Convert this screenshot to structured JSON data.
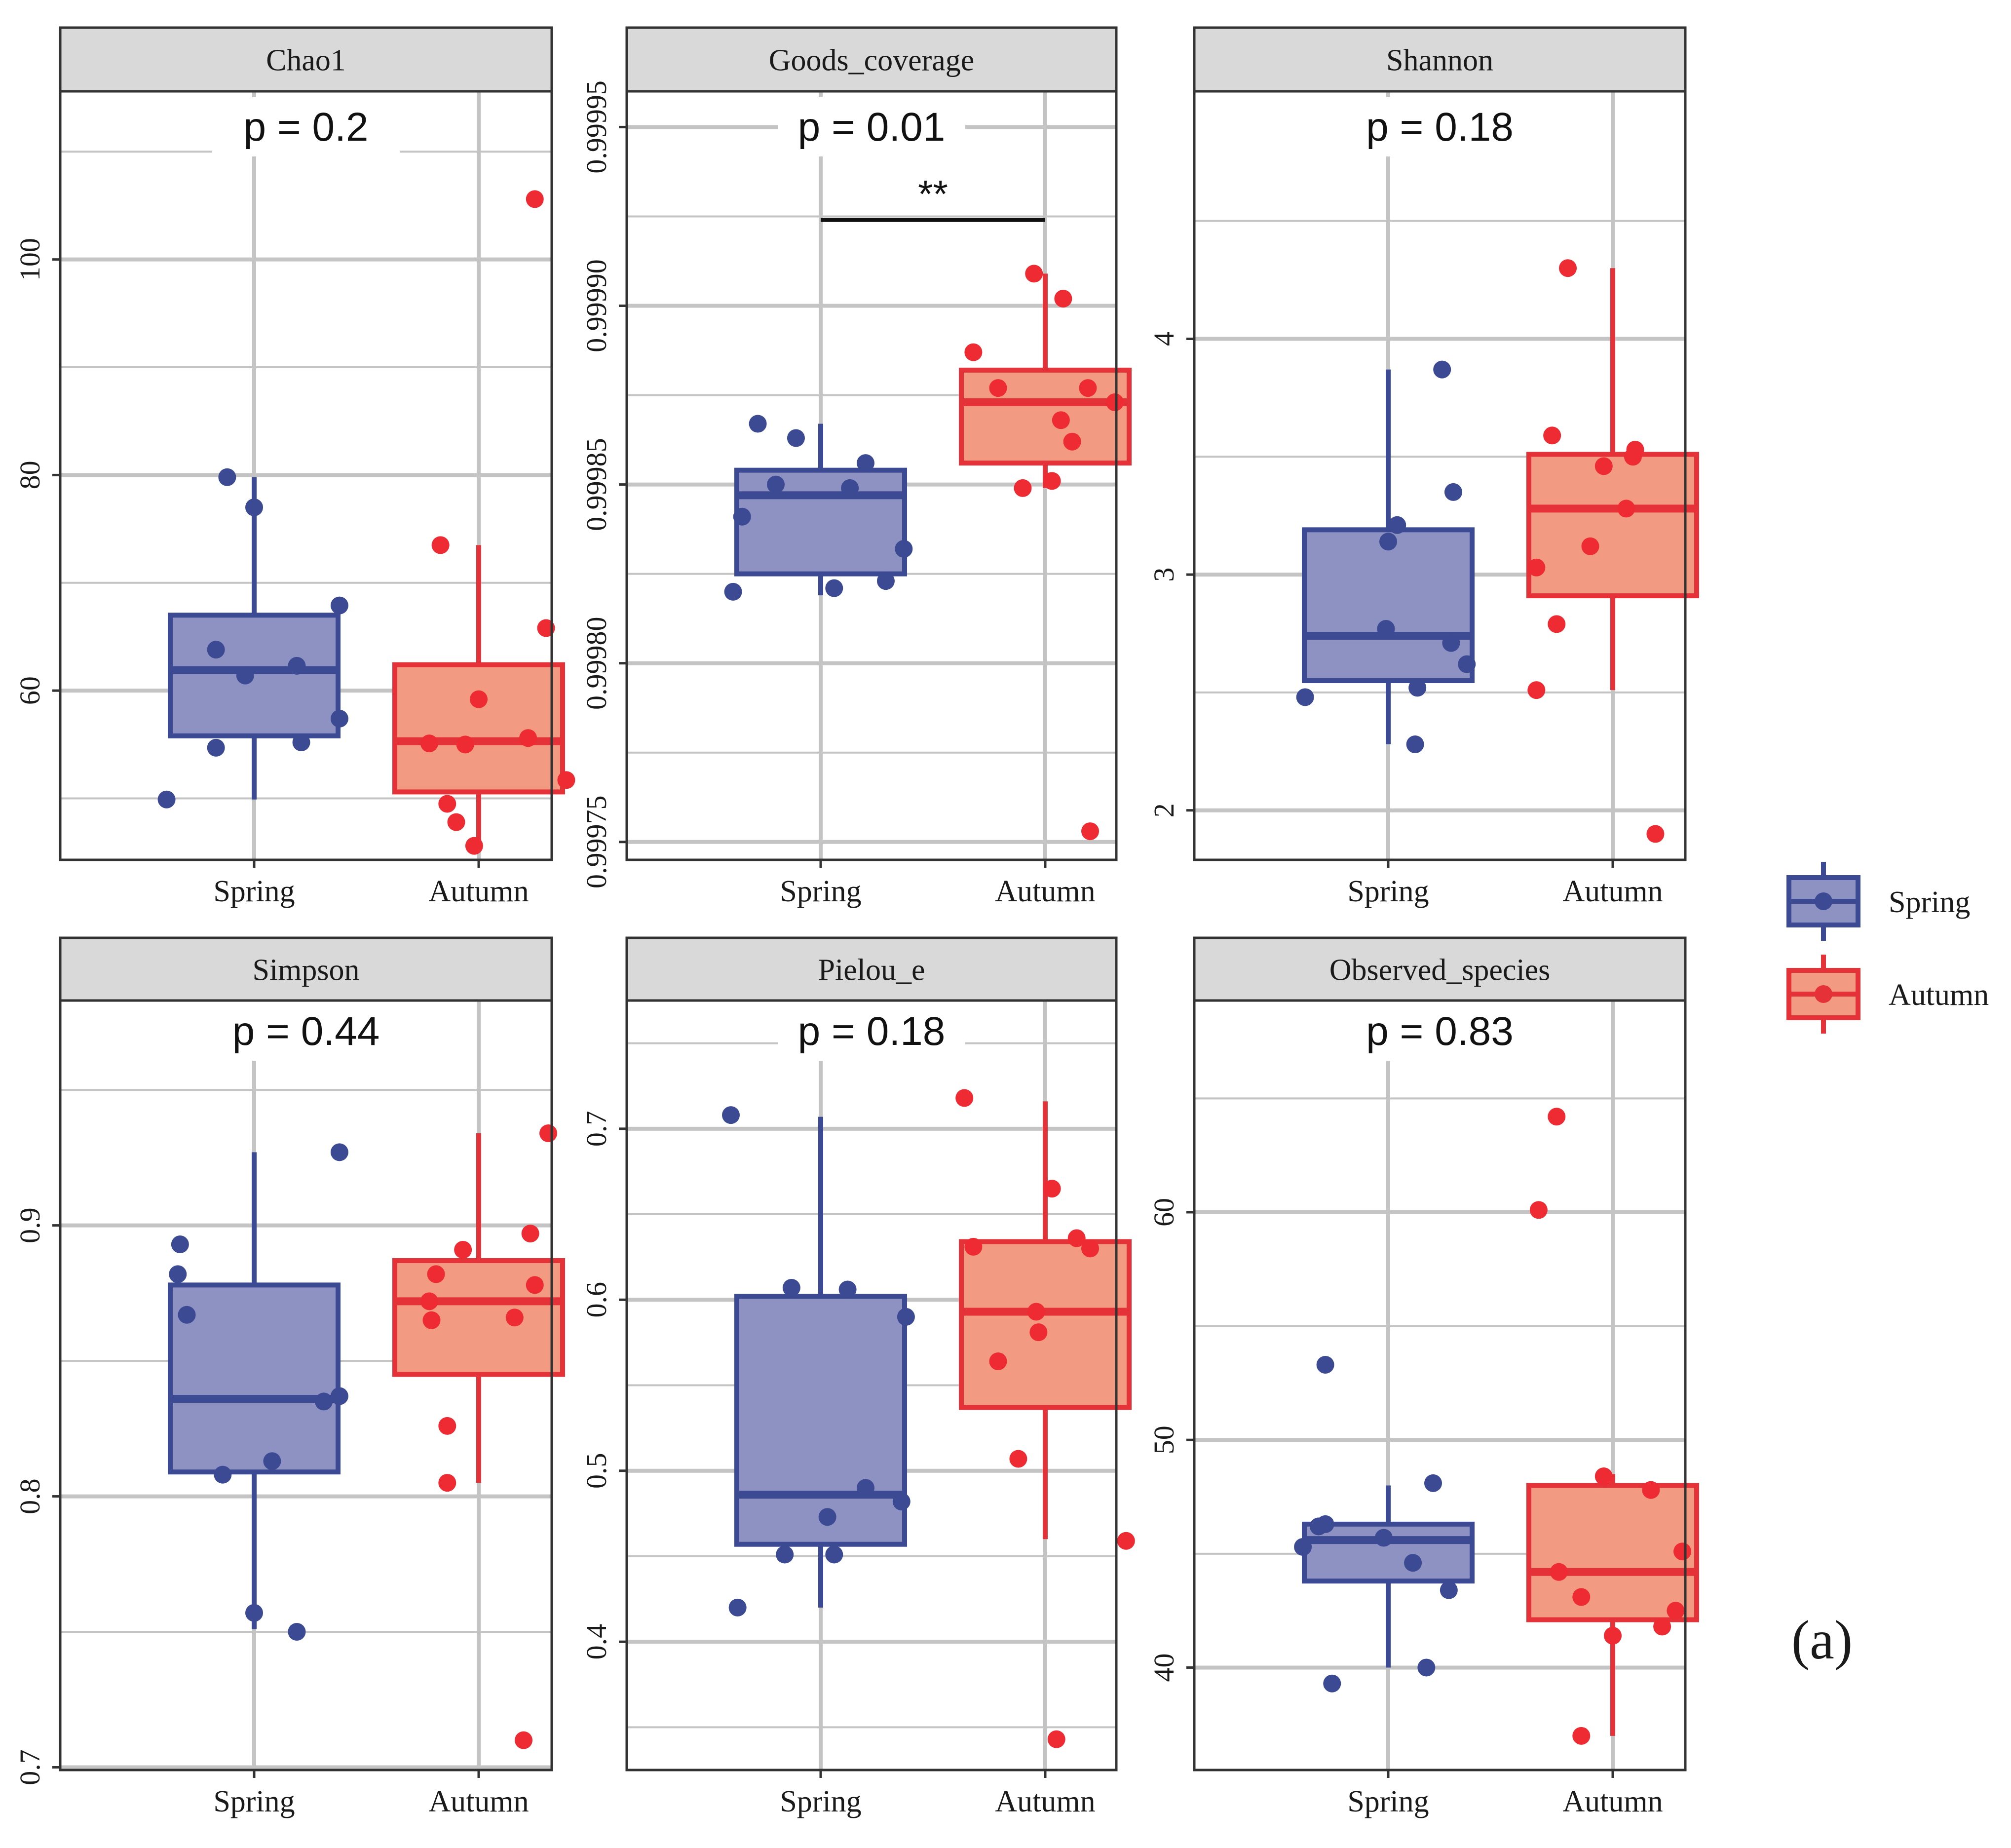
{
  "figure": {
    "panel_tag": "(a)",
    "colors": {
      "spring_line": "#3b4a92",
      "spring_fill": "#8e92c2",
      "spring_point": "#3b4a92",
      "autumn_line": "#e53238",
      "autumn_fill": "#f39a82",
      "autumn_point": "#ee2a32",
      "grid": "#c4c4c4",
      "strip_bg": "#d9d9d9",
      "border": "#333333"
    }
  },
  "legend": {
    "items": [
      {
        "label": "Spring",
        "group": "spring"
      },
      {
        "label": "Autumn",
        "group": "autumn"
      }
    ]
  },
  "chart_data": [
    {
      "type": "box",
      "title": "Chao1",
      "categories": [
        "Spring",
        "Autumn"
      ],
      "ylim": [
        44.3,
        115.6
      ],
      "major_ticks": [
        60,
        80,
        100
      ],
      "minor_ticks": [
        50,
        70,
        90,
        110
      ],
      "tick_labels": [
        "60",
        "80",
        "100"
      ],
      "p_label": "p = 0.2",
      "significance": null,
      "boxes": [
        {
          "group": "Spring",
          "q1": 55.8,
          "median": 61.9,
          "q3": 67.0,
          "whisker_low": 49.9,
          "whisker_high": 79.8
        },
        {
          "group": "Autumn",
          "q1": 50.6,
          "median": 55.3,
          "q3": 62.4,
          "whisker_low": 45.6,
          "whisker_high": 73.5
        }
      ],
      "points": [
        {
          "group": "Spring",
          "x": 0.61,
          "y": 49.9
        },
        {
          "group": "Spring",
          "x": 0.83,
          "y": 54.7
        },
        {
          "group": "Spring",
          "x": 0.83,
          "y": 63.8
        },
        {
          "group": "Spring",
          "x": 0.88,
          "y": 79.8
        },
        {
          "group": "Spring",
          "x": 0.96,
          "y": 61.4
        },
        {
          "group": "Spring",
          "x": 1.0,
          "y": 77.0
        },
        {
          "group": "Spring",
          "x": 1.19,
          "y": 62.3
        },
        {
          "group": "Spring",
          "x": 1.21,
          "y": 55.2
        },
        {
          "group": "Spring",
          "x": 1.38,
          "y": 57.4
        },
        {
          "group": "Spring",
          "x": 1.38,
          "y": 67.9
        },
        {
          "group": "Autumn",
          "x": 1.78,
          "y": 55.1
        },
        {
          "group": "Autumn",
          "x": 1.83,
          "y": 73.5
        },
        {
          "group": "Autumn",
          "x": 1.86,
          "y": 49.5
        },
        {
          "group": "Autumn",
          "x": 1.9,
          "y": 47.8
        },
        {
          "group": "Autumn",
          "x": 1.94,
          "y": 55.0
        },
        {
          "group": "Autumn",
          "x": 1.98,
          "y": 45.6
        },
        {
          "group": "Autumn",
          "x": 2.0,
          "y": 59.2
        },
        {
          "group": "Autumn",
          "x": 2.22,
          "y": 55.6
        },
        {
          "group": "Autumn",
          "x": 2.25,
          "y": 105.6
        },
        {
          "group": "Autumn",
          "x": 2.3,
          "y": 65.8
        },
        {
          "group": "Autumn",
          "x": 2.39,
          "y": 51.7
        }
      ]
    },
    {
      "type": "box",
      "title": "Goods_coverage",
      "categories": [
        "Spring",
        "Autumn"
      ],
      "ylim": [
        0.999745,
        0.99996
      ],
      "major_ticks": [
        0.99975,
        0.9998,
        0.99985,
        0.9999,
        0.99995
      ],
      "minor_ticks": [
        0.999775,
        0.999825,
        0.999875,
        0.999925
      ],
      "tick_labels": [
        "0.99975",
        "0.99980",
        "0.99985",
        "0.99990",
        "0.99995"
      ],
      "p_label": "p = 0.01",
      "significance": {
        "label": "**",
        "y": 0.999924
      },
      "boxes": [
        {
          "group": "Spring",
          "q1": 0.999825,
          "median": 0.999847,
          "q3": 0.999854,
          "whisker_low": 0.999819,
          "whisker_high": 0.999867
        },
        {
          "group": "Autumn",
          "q1": 0.999856,
          "median": 0.999873,
          "q3": 0.999882,
          "whisker_low": 0.999849,
          "whisker_high": 0.999909
        }
      ],
      "points": [
        {
          "group": "Spring",
          "x": 0.61,
          "y": 0.99982
        },
        {
          "group": "Spring",
          "x": 0.65,
          "y": 0.999841
        },
        {
          "group": "Spring",
          "x": 0.72,
          "y": 0.999867
        },
        {
          "group": "Spring",
          "x": 0.8,
          "y": 0.99985
        },
        {
          "group": "Spring",
          "x": 0.89,
          "y": 0.999863
        },
        {
          "group": "Spring",
          "x": 1.06,
          "y": 0.999821
        },
        {
          "group": "Spring",
          "x": 1.13,
          "y": 0.999849
        },
        {
          "group": "Spring",
          "x": 1.2,
          "y": 0.999856
        },
        {
          "group": "Spring",
          "x": 1.29,
          "y": 0.999823
        },
        {
          "group": "Spring",
          "x": 1.37,
          "y": 0.999832
        },
        {
          "group": "Autumn",
          "x": 1.68,
          "y": 0.999887
        },
        {
          "group": "Autumn",
          "x": 1.79,
          "y": 0.999877
        },
        {
          "group": "Autumn",
          "x": 1.9,
          "y": 0.999849
        },
        {
          "group": "Autumn",
          "x": 1.95,
          "y": 0.999909
        },
        {
          "group": "Autumn",
          "x": 2.03,
          "y": 0.999851
        },
        {
          "group": "Autumn",
          "x": 2.07,
          "y": 0.999868
        },
        {
          "group": "Autumn",
          "x": 2.08,
          "y": 0.999902
        },
        {
          "group": "Autumn",
          "x": 2.12,
          "y": 0.999862
        },
        {
          "group": "Autumn",
          "x": 2.19,
          "y": 0.999877
        },
        {
          "group": "Autumn",
          "x": 2.2,
          "y": 0.999753
        },
        {
          "group": "Autumn",
          "x": 2.31,
          "y": 0.999873
        }
      ]
    },
    {
      "type": "box",
      "title": "Shannon",
      "categories": [
        "Spring",
        "Autumn"
      ],
      "ylim": [
        1.79,
        5.05
      ],
      "major_ticks": [
        2,
        3,
        4
      ],
      "minor_ticks": [
        2.5,
        3.5,
        4.5
      ],
      "tick_labels": [
        "2",
        "3",
        "4"
      ],
      "p_label": "p = 0.18",
      "significance": null,
      "boxes": [
        {
          "group": "Spring",
          "q1": 2.55,
          "median": 2.74,
          "q3": 3.19,
          "whisker_low": 2.28,
          "whisker_high": 3.87
        },
        {
          "group": "Autumn",
          "q1": 2.91,
          "median": 3.28,
          "q3": 3.51,
          "whisker_low": 2.51,
          "whisker_high": 4.3
        }
      ],
      "points": [
        {
          "group": "Spring",
          "x": 0.63,
          "y": 2.48
        },
        {
          "group": "Spring",
          "x": 0.99,
          "y": 2.77
        },
        {
          "group": "Spring",
          "x": 1.0,
          "y": 3.14
        },
        {
          "group": "Spring",
          "x": 1.04,
          "y": 3.21
        },
        {
          "group": "Spring",
          "x": 1.12,
          "y": 2.28
        },
        {
          "group": "Spring",
          "x": 1.13,
          "y": 2.52
        },
        {
          "group": "Spring",
          "x": 1.24,
          "y": 3.87
        },
        {
          "group": "Spring",
          "x": 1.28,
          "y": 2.71
        },
        {
          "group": "Spring",
          "x": 1.29,
          "y": 3.35
        },
        {
          "group": "Spring",
          "x": 1.35,
          "y": 2.62
        },
        {
          "group": "Autumn",
          "x": 1.66,
          "y": 2.51
        },
        {
          "group": "Autumn",
          "x": 1.66,
          "y": 3.03
        },
        {
          "group": "Autumn",
          "x": 1.73,
          "y": 3.59
        },
        {
          "group": "Autumn",
          "x": 1.75,
          "y": 2.79
        },
        {
          "group": "Autumn",
          "x": 1.8,
          "y": 4.3
        },
        {
          "group": "Autumn",
          "x": 1.9,
          "y": 3.12
        },
        {
          "group": "Autumn",
          "x": 1.96,
          "y": 3.46
        },
        {
          "group": "Autumn",
          "x": 2.06,
          "y": 3.28
        },
        {
          "group": "Autumn",
          "x": 2.09,
          "y": 3.5
        },
        {
          "group": "Autumn",
          "x": 2.1,
          "y": 3.53
        },
        {
          "group": "Autumn",
          "x": 2.19,
          "y": 1.9
        }
      ]
    },
    {
      "type": "box",
      "title": "Simpson",
      "categories": [
        "Spring",
        "Autumn"
      ],
      "ylim": [
        0.699,
        0.983
      ],
      "major_ticks": [
        0.7,
        0.8,
        0.9
      ],
      "minor_ticks": [
        0.75,
        0.85,
        0.95
      ],
      "tick_labels": [
        "0.7",
        "0.8",
        "0.9"
      ],
      "p_label": "p = 0.44",
      "significance": null,
      "boxes": [
        {
          "group": "Spring",
          "q1": 0.809,
          "median": 0.836,
          "q3": 0.878,
          "whisker_low": 0.751,
          "whisker_high": 0.927
        },
        {
          "group": "Autumn",
          "q1": 0.845,
          "median": 0.872,
          "q3": 0.887,
          "whisker_low": 0.805,
          "whisker_high": 0.934
        }
      ],
      "points": [
        {
          "group": "Spring",
          "x": 0.66,
          "y": 0.882
        },
        {
          "group": "Spring",
          "x": 0.67,
          "y": 0.893
        },
        {
          "group": "Spring",
          "x": 0.7,
          "y": 0.867
        },
        {
          "group": "Spring",
          "x": 0.86,
          "y": 0.808
        },
        {
          "group": "Spring",
          "x": 1.0,
          "y": 0.757
        },
        {
          "group": "Spring",
          "x": 1.08,
          "y": 0.813
        },
        {
          "group": "Spring",
          "x": 1.19,
          "y": 0.75
        },
        {
          "group": "Spring",
          "x": 1.31,
          "y": 0.835
        },
        {
          "group": "Spring",
          "x": 1.38,
          "y": 0.837
        },
        {
          "group": "Spring",
          "x": 1.38,
          "y": 0.927
        },
        {
          "group": "Autumn",
          "x": 1.78,
          "y": 0.872
        },
        {
          "group": "Autumn",
          "x": 1.79,
          "y": 0.865
        },
        {
          "group": "Autumn",
          "x": 1.81,
          "y": 0.882
        },
        {
          "group": "Autumn",
          "x": 1.86,
          "y": 0.826
        },
        {
          "group": "Autumn",
          "x": 1.86,
          "y": 0.805
        },
        {
          "group": "Autumn",
          "x": 1.93,
          "y": 0.891
        },
        {
          "group": "Autumn",
          "x": 2.16,
          "y": 0.866
        },
        {
          "group": "Autumn",
          "x": 2.2,
          "y": 0.71
        },
        {
          "group": "Autumn",
          "x": 2.23,
          "y": 0.897
        },
        {
          "group": "Autumn",
          "x": 2.25,
          "y": 0.878
        },
        {
          "group": "Autumn",
          "x": 2.31,
          "y": 0.934
        }
      ]
    },
    {
      "type": "box",
      "title": "Pielou_e",
      "categories": [
        "Spring",
        "Autumn"
      ],
      "ylim": [
        0.325,
        0.775
      ],
      "major_ticks": [
        0.4,
        0.5,
        0.6,
        0.7
      ],
      "minor_ticks": [
        0.35,
        0.45,
        0.55,
        0.65,
        0.75
      ],
      "tick_labels": [
        "0.4",
        "0.5",
        "0.6",
        "0.7"
      ],
      "p_label": "p = 0.18",
      "significance": null,
      "boxes": [
        {
          "group": "Spring",
          "q1": 0.457,
          "median": 0.486,
          "q3": 0.602,
          "whisker_low": 0.42,
          "whisker_high": 0.707
        },
        {
          "group": "Autumn",
          "q1": 0.537,
          "median": 0.593,
          "q3": 0.634,
          "whisker_low": 0.46,
          "whisker_high": 0.716
        }
      ],
      "points": [
        {
          "group": "Spring",
          "x": 0.63,
          "y": 0.42
        },
        {
          "group": "Spring",
          "x": 0.6,
          "y": 0.708
        },
        {
          "group": "Spring",
          "x": 0.84,
          "y": 0.451
        },
        {
          "group": "Spring",
          "x": 0.87,
          "y": 0.607
        },
        {
          "group": "Spring",
          "x": 1.03,
          "y": 0.473
        },
        {
          "group": "Spring",
          "x": 1.06,
          "y": 0.451
        },
        {
          "group": "Spring",
          "x": 1.12,
          "y": 0.606
        },
        {
          "group": "Spring",
          "x": 1.2,
          "y": 0.49
        },
        {
          "group": "Spring",
          "x": 1.36,
          "y": 0.482
        },
        {
          "group": "Spring",
          "x": 1.38,
          "y": 0.59
        },
        {
          "group": "Autumn",
          "x": 1.64,
          "y": 0.718
        },
        {
          "group": "Autumn",
          "x": 1.68,
          "y": 0.631
        },
        {
          "group": "Autumn",
          "x": 1.79,
          "y": 0.564
        },
        {
          "group": "Autumn",
          "x": 1.88,
          "y": 0.507
        },
        {
          "group": "Autumn",
          "x": 1.96,
          "y": 0.593
        },
        {
          "group": "Autumn",
          "x": 1.97,
          "y": 0.581
        },
        {
          "group": "Autumn",
          "x": 2.03,
          "y": 0.665
        },
        {
          "group": "Autumn",
          "x": 2.05,
          "y": 0.343
        },
        {
          "group": "Autumn",
          "x": 2.14,
          "y": 0.636
        },
        {
          "group": "Autumn",
          "x": 2.2,
          "y": 0.63
        },
        {
          "group": "Autumn",
          "x": 2.36,
          "y": 0.459
        }
      ]
    },
    {
      "type": "box",
      "title": "Observed_species",
      "categories": [
        "Spring",
        "Autumn"
      ],
      "ylim": [
        35.5,
        69.3
      ],
      "major_ticks": [
        40,
        50,
        60
      ],
      "minor_ticks": [
        45,
        55,
        65
      ],
      "tick_labels": [
        "40",
        "50",
        "60"
      ],
      "p_label": "p = 0.83",
      "significance": null,
      "boxes": [
        {
          "group": "Spring",
          "q1": 43.8,
          "median": 45.6,
          "q3": 46.3,
          "whisker_low": 40.0,
          "whisker_high": 48.0
        },
        {
          "group": "Autumn",
          "q1": 42.1,
          "median": 44.2,
          "q3": 48.0,
          "whisker_low": 37.0,
          "whisker_high": 48.5
        }
      ],
      "points": [
        {
          "group": "Spring",
          "x": 0.62,
          "y": 45.3
        },
        {
          "group": "Spring",
          "x": 0.69,
          "y": 46.2
        },
        {
          "group": "Spring",
          "x": 0.72,
          "y": 46.3
        },
        {
          "group": "Spring",
          "x": 0.72,
          "y": 53.3
        },
        {
          "group": "Spring",
          "x": 0.75,
          "y": 39.3
        },
        {
          "group": "Spring",
          "x": 0.98,
          "y": 45.7
        },
        {
          "group": "Spring",
          "x": 1.11,
          "y": 44.6
        },
        {
          "group": "Spring",
          "x": 1.17,
          "y": 40.0
        },
        {
          "group": "Spring",
          "x": 1.2,
          "y": 48.1
        },
        {
          "group": "Spring",
          "x": 1.27,
          "y": 43.4
        },
        {
          "group": "Autumn",
          "x": 1.67,
          "y": 60.1
        },
        {
          "group": "Autumn",
          "x": 1.75,
          "y": 64.2
        },
        {
          "group": "Autumn",
          "x": 1.76,
          "y": 44.2
        },
        {
          "group": "Autumn",
          "x": 1.86,
          "y": 43.1
        },
        {
          "group": "Autumn",
          "x": 1.86,
          "y": 37.0
        },
        {
          "group": "Autumn",
          "x": 1.96,
          "y": 48.4
        },
        {
          "group": "Autumn",
          "x": 2.0,
          "y": 41.4
        },
        {
          "group": "Autumn",
          "x": 2.17,
          "y": 47.8
        },
        {
          "group": "Autumn",
          "x": 2.22,
          "y": 41.8
        },
        {
          "group": "Autumn",
          "x": 2.28,
          "y": 42.5
        },
        {
          "group": "Autumn",
          "x": 2.31,
          "y": 45.1
        }
      ]
    }
  ]
}
